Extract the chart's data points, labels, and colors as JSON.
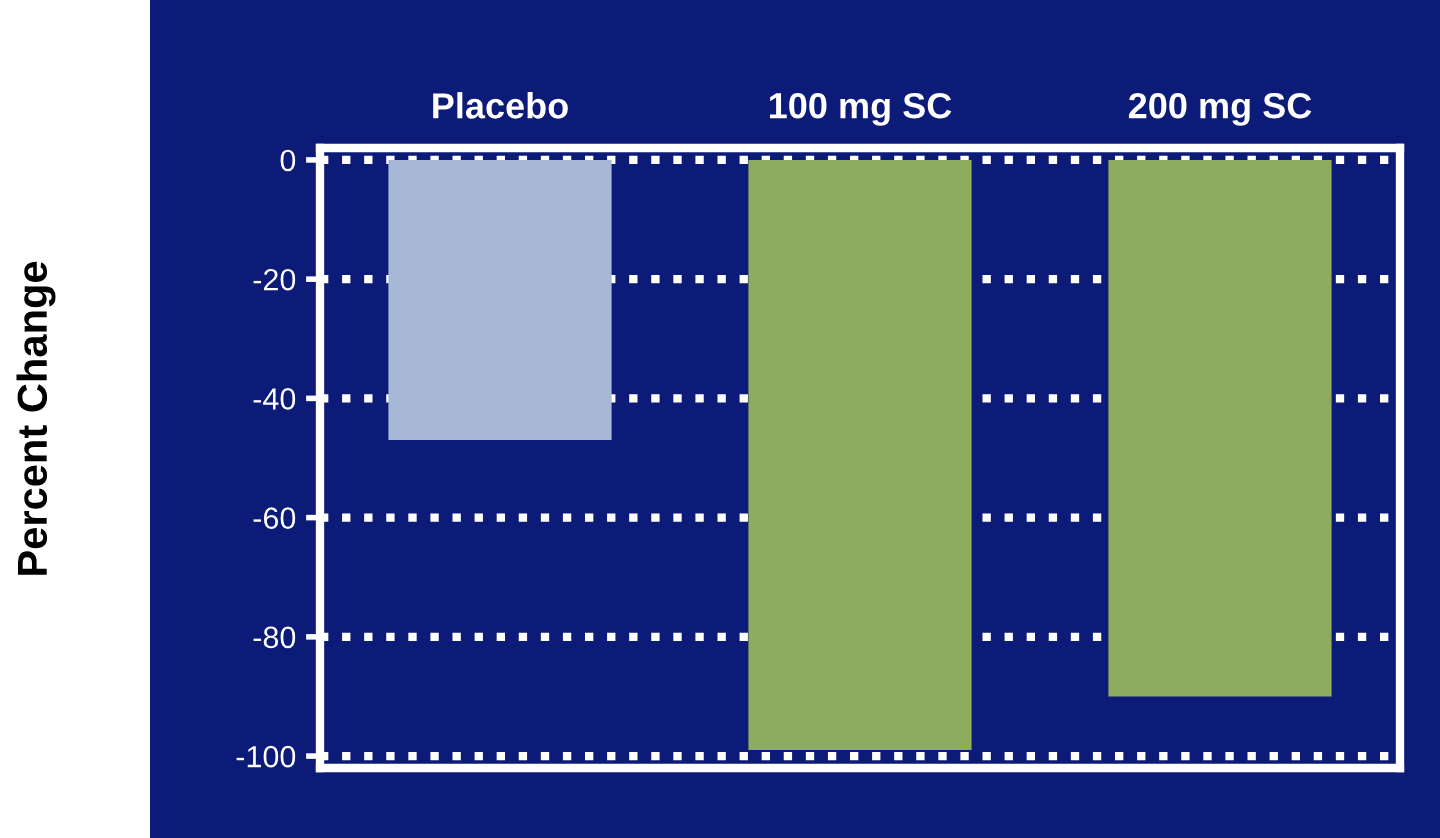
{
  "chart_data": {
    "type": "bar",
    "ylabel": "Percent Change",
    "categories": [
      "Placebo",
      "100 mg SC",
      "200 mg SC"
    ],
    "values": [
      -47,
      -99,
      -90
    ],
    "colors": [
      "#a6b8d6",
      "#8fab5e",
      "#8fab5e"
    ],
    "ylim": [
      -102,
      2
    ],
    "yticks": [
      0,
      -20,
      -40,
      -60,
      -80,
      -100
    ],
    "grid": "y",
    "line_style": "dotted"
  }
}
